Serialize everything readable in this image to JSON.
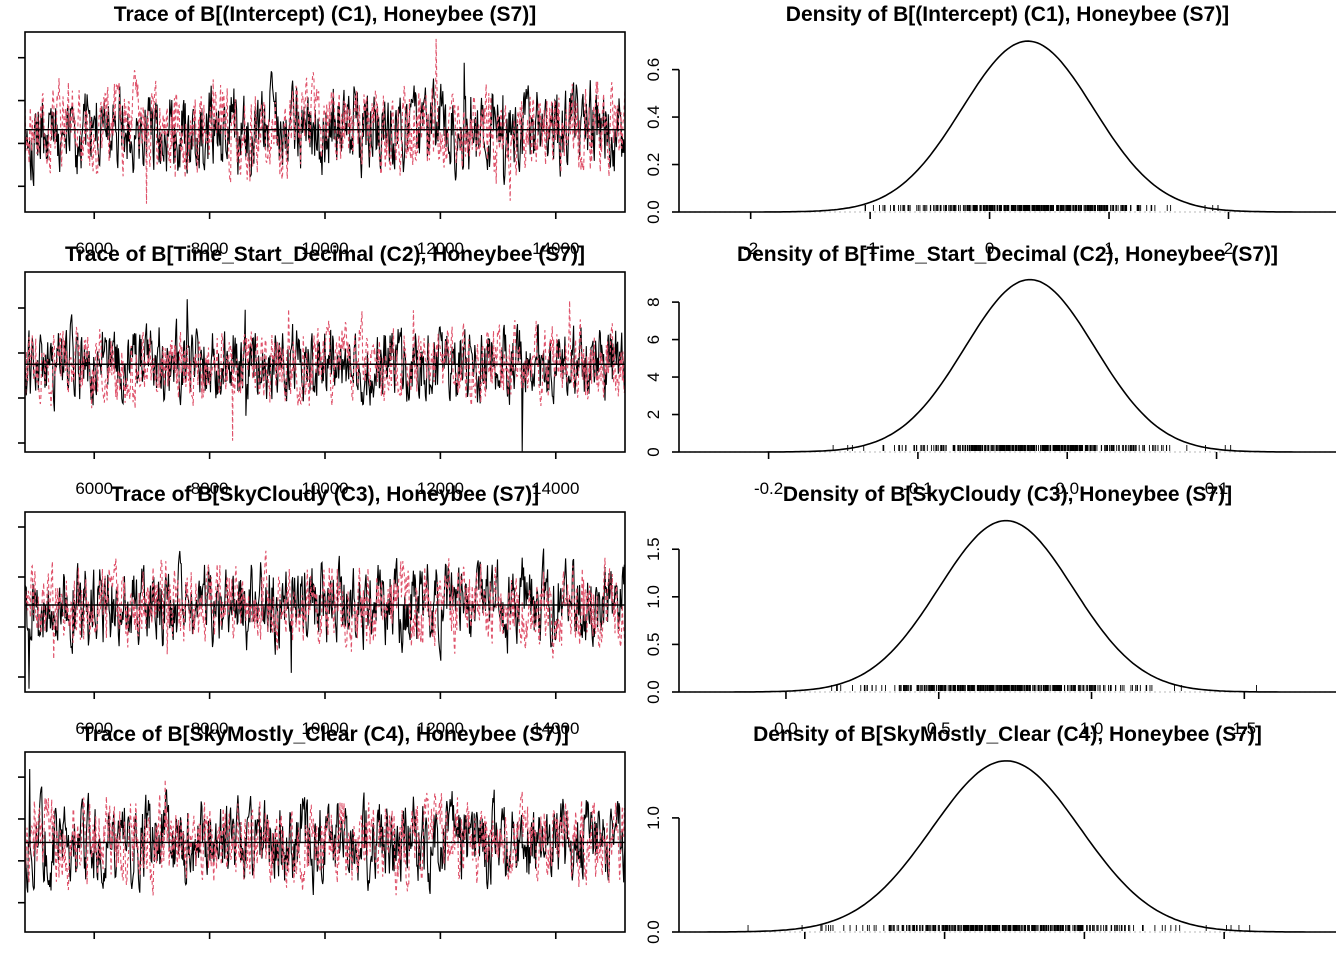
{
  "figure": {
    "background": "#ffffff",
    "axis_color": "#000000",
    "baseline_color": "#c8c8c8",
    "chain_colors": [
      "#000000",
      "#DF536B"
    ],
    "legend": "none",
    "grid": "off"
  },
  "chart_data": [
    {
      "kind": "trace",
      "type": "line",
      "title": "Trace of B[(Intercept) (C1), Honeybee (S7)]",
      "x_range": [
        4800,
        15200
      ],
      "x_ticks": [
        6000,
        8000,
        10000,
        12000,
        14000
      ],
      "x_tick_labels": [
        "6000",
        "8000",
        "10000",
        "12000",
        "14000"
      ],
      "y_range": [
        -1.6,
        2.6
      ],
      "y_ticks": [
        -1,
        0,
        1,
        2
      ],
      "mean": 0.32,
      "sd": 0.55,
      "n_points": 900,
      "chains": 2,
      "seed": 101
    },
    {
      "kind": "density",
      "type": "line",
      "title": "Density of B[(Intercept) (C1), Honeybee (S7)]",
      "x_range": [
        -2.6,
        2.9
      ],
      "x_ticks": [
        -2,
        -1,
        0,
        1,
        2
      ],
      "x_tick_labels": [
        "-2",
        "-1",
        "0",
        "1",
        "2"
      ],
      "y_range": [
        0,
        0.75
      ],
      "y_ticks": [
        0,
        0.2,
        0.4,
        0.6
      ],
      "y_tick_labels": [
        "0.0",
        "0.2",
        "0.4",
        "0.6"
      ],
      "mean": 0.32,
      "sd": 0.55,
      "peak": 0.72,
      "rug_n": 380,
      "seed": 102
    },
    {
      "kind": "trace",
      "type": "line",
      "title": "Trace of B[Time_Start_Decimal (C2), Honeybee (S7)]",
      "x_range": [
        4800,
        15200
      ],
      "x_ticks": [
        6000,
        8000,
        10000,
        12000,
        14000
      ],
      "x_tick_labels": [
        "6000",
        "8000",
        "10000",
        "12000",
        "14000"
      ],
      "y_range": [
        -0.22,
        0.18
      ],
      "y_ticks": [
        -0.2,
        -0.1,
        0,
        0.1
      ],
      "mean": -0.025,
      "sd": 0.045,
      "n_points": 900,
      "chains": 2,
      "seed": 201
    },
    {
      "kind": "density",
      "type": "line",
      "title": "Density of B[Time_Start_Decimal (C2), Honeybee (S7)]",
      "x_range": [
        -0.26,
        0.18
      ],
      "x_ticks": [
        -0.2,
        -0.1,
        0,
        0.1
      ],
      "x_tick_labels": [
        "-0.2",
        "-0.1",
        "0.0",
        "0.1"
      ],
      "y_range": [
        0,
        9.5
      ],
      "y_ticks": [
        0,
        2,
        4,
        6,
        8
      ],
      "y_tick_labels": [
        "0",
        "2",
        "4",
        "6",
        "8"
      ],
      "mean": -0.025,
      "sd": 0.0435,
      "peak": 9.2,
      "rug_n": 380,
      "seed": 202
    },
    {
      "kind": "trace",
      "type": "line",
      "title": "Trace of B[SkyCloudy (C3), Honeybee (S7)]",
      "x_range": [
        4800,
        15200
      ],
      "x_ticks": [
        6000,
        8000,
        10000,
        12000,
        14000
      ],
      "x_tick_labels": [
        "6000",
        "8000",
        "10000",
        "12000",
        "14000"
      ],
      "y_range": [
        -0.15,
        1.65
      ],
      "y_ticks": [
        0,
        0.5,
        1,
        1.5
      ],
      "mean": 0.72,
      "sd": 0.22,
      "n_points": 900,
      "chains": 2,
      "seed": 301
    },
    {
      "kind": "density",
      "type": "line",
      "title": "Density of B[SkyCloudy (C3), Honeybee (S7)]",
      "x_range": [
        -0.35,
        1.8
      ],
      "x_ticks": [
        0,
        0.5,
        1,
        1.5
      ],
      "x_tick_labels": [
        "0.0",
        "0.5",
        "1.0",
        "1.5"
      ],
      "y_range": [
        0,
        1.87
      ],
      "y_ticks": [
        0,
        0.5,
        1,
        1.5
      ],
      "y_tick_labels": [
        "0.0",
        "0.5",
        "1.0",
        "1.5"
      ],
      "mean": 0.72,
      "sd": 0.22,
      "peak": 1.8,
      "rug_n": 380,
      "seed": 302
    },
    {
      "kind": "trace",
      "type": "line",
      "title": "Trace of B[SkyMostly_Clear (C4), Honeybee (S7)]",
      "x_range": [
        4800,
        15200
      ],
      "x_ticks": [
        6000,
        8000,
        10000,
        12000,
        14000
      ],
      "x_tick_labels": [
        "6000",
        "8000",
        "10000",
        "12000",
        "14000"
      ],
      "y_range": [
        -0.35,
        1.8
      ],
      "y_ticks": [
        0,
        0.5,
        1,
        1.5
      ],
      "mean": 0.72,
      "sd": 0.27,
      "n_points": 900,
      "chains": 2,
      "seed": 401
    },
    {
      "kind": "density",
      "type": "line",
      "title": "Density of B[SkyMostly_Clear (C4), Honeybee (S7)]",
      "x_range": [
        -0.45,
        1.9
      ],
      "x_ticks": [
        0,
        0.5,
        1,
        1.5
      ],
      "x_tick_labels": [
        "0.0",
        "0.5",
        "1.0",
        "1.5"
      ],
      "y_range": [
        0,
        1.56
      ],
      "y_ticks": [
        0,
        1
      ],
      "y_tick_labels": [
        "0.0",
        "1.0"
      ],
      "mean": 0.72,
      "sd": 0.265,
      "peak": 1.5,
      "rug_n": 380,
      "seed": 402
    }
  ]
}
